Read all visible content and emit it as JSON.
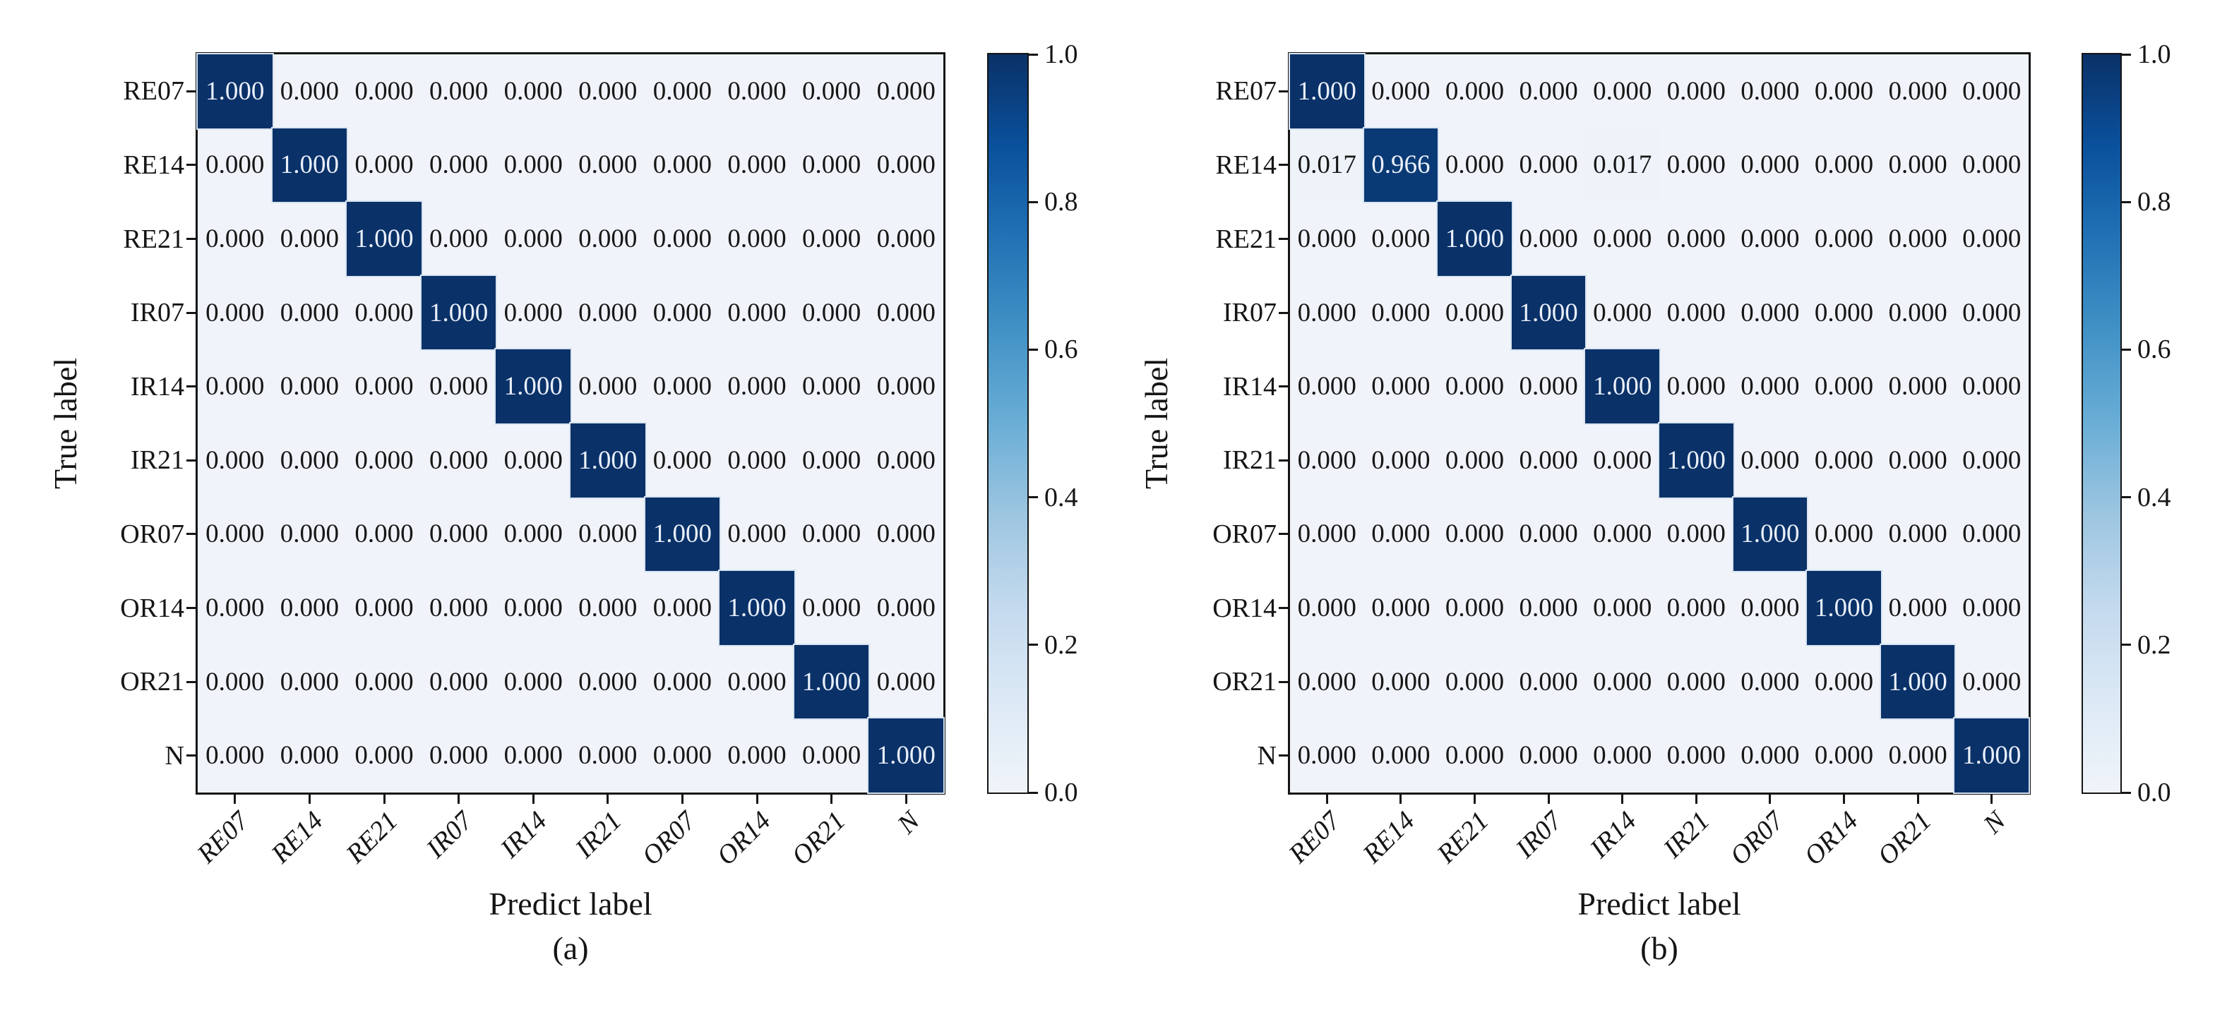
{
  "figure": {
    "background": "#ffffff",
    "text_color": "#151515",
    "ylabel": "True label",
    "xlabel": "Predict label",
    "classes": [
      "RE07",
      "RE14",
      "RE21",
      "IR07",
      "IR14",
      "IR21",
      "OR07",
      "OR14",
      "OR21",
      "N"
    ],
    "colormap_name": "Blues",
    "colormap_stops": [
      "#f0f4fa",
      "#dce9f5",
      "#c4daee",
      "#9dc6e0",
      "#6aaed6",
      "#4292c6",
      "#2272b5",
      "#0a519c",
      "#0a3168"
    ],
    "diagonal_color": "#0a3168",
    "off_diagonal_color": "#f0f4fa",
    "cell_text_dark_bg": "#e9eff9",
    "cell_text_light_bg": "#171717",
    "value_format_decimals": 3
  },
  "chart_data": [
    {
      "type": "heatmap",
      "caption": "(a)",
      "xlabel": "Predict label",
      "ylabel": "True label",
      "x_categories": [
        "RE07",
        "RE14",
        "RE21",
        "IR07",
        "IR14",
        "IR21",
        "OR07",
        "OR14",
        "OR21",
        "N"
      ],
      "y_categories": [
        "RE07",
        "RE14",
        "RE21",
        "IR07",
        "IR14",
        "IR21",
        "OR07",
        "OR14",
        "OR21",
        "N"
      ],
      "value_range": [
        0,
        1
      ],
      "colormap": "Blues",
      "colorbar_ticks": [
        "1.0",
        "0.8",
        "0.6",
        "0.4",
        "0.2",
        "0.0"
      ],
      "values": [
        [
          1.0,
          0.0,
          0.0,
          0.0,
          0.0,
          0.0,
          0.0,
          0.0,
          0.0,
          0.0
        ],
        [
          0.0,
          1.0,
          0.0,
          0.0,
          0.0,
          0.0,
          0.0,
          0.0,
          0.0,
          0.0
        ],
        [
          0.0,
          0.0,
          1.0,
          0.0,
          0.0,
          0.0,
          0.0,
          0.0,
          0.0,
          0.0
        ],
        [
          0.0,
          0.0,
          0.0,
          1.0,
          0.0,
          0.0,
          0.0,
          0.0,
          0.0,
          0.0
        ],
        [
          0.0,
          0.0,
          0.0,
          0.0,
          1.0,
          0.0,
          0.0,
          0.0,
          0.0,
          0.0
        ],
        [
          0.0,
          0.0,
          0.0,
          0.0,
          0.0,
          1.0,
          0.0,
          0.0,
          0.0,
          0.0
        ],
        [
          0.0,
          0.0,
          0.0,
          0.0,
          0.0,
          0.0,
          1.0,
          0.0,
          0.0,
          0.0
        ],
        [
          0.0,
          0.0,
          0.0,
          0.0,
          0.0,
          0.0,
          0.0,
          1.0,
          0.0,
          0.0
        ],
        [
          0.0,
          0.0,
          0.0,
          0.0,
          0.0,
          0.0,
          0.0,
          0.0,
          1.0,
          0.0
        ],
        [
          0.0,
          0.0,
          0.0,
          0.0,
          0.0,
          0.0,
          0.0,
          0.0,
          0.0,
          1.0
        ]
      ]
    },
    {
      "type": "heatmap",
      "caption": "(b)",
      "xlabel": "Predict label",
      "ylabel": "True label",
      "x_categories": [
        "RE07",
        "RE14",
        "RE21",
        "IR07",
        "IR14",
        "IR21",
        "OR07",
        "OR14",
        "OR21",
        "N"
      ],
      "y_categories": [
        "RE07",
        "RE14",
        "RE21",
        "IR07",
        "IR14",
        "IR21",
        "OR07",
        "OR14",
        "OR21",
        "N"
      ],
      "value_range": [
        0,
        1
      ],
      "colormap": "Blues",
      "colorbar_ticks": [
        "1.0",
        "0.8",
        "0.6",
        "0.4",
        "0.2",
        "0.0"
      ],
      "values": [
        [
          1.0,
          0.0,
          0.0,
          0.0,
          0.0,
          0.0,
          0.0,
          0.0,
          0.0,
          0.0
        ],
        [
          0.017,
          0.966,
          0.0,
          0.0,
          0.017,
          0.0,
          0.0,
          0.0,
          0.0,
          0.0
        ],
        [
          0.0,
          0.0,
          1.0,
          0.0,
          0.0,
          0.0,
          0.0,
          0.0,
          0.0,
          0.0
        ],
        [
          0.0,
          0.0,
          0.0,
          1.0,
          0.0,
          0.0,
          0.0,
          0.0,
          0.0,
          0.0
        ],
        [
          0.0,
          0.0,
          0.0,
          0.0,
          1.0,
          0.0,
          0.0,
          0.0,
          0.0,
          0.0
        ],
        [
          0.0,
          0.0,
          0.0,
          0.0,
          0.0,
          1.0,
          0.0,
          0.0,
          0.0,
          0.0
        ],
        [
          0.0,
          0.0,
          0.0,
          0.0,
          0.0,
          0.0,
          1.0,
          0.0,
          0.0,
          0.0
        ],
        [
          0.0,
          0.0,
          0.0,
          0.0,
          0.0,
          0.0,
          0.0,
          1.0,
          0.0,
          0.0
        ],
        [
          0.0,
          0.0,
          0.0,
          0.0,
          0.0,
          0.0,
          0.0,
          0.0,
          1.0,
          0.0
        ],
        [
          0.0,
          0.0,
          0.0,
          0.0,
          0.0,
          0.0,
          0.0,
          0.0,
          0.0,
          1.0
        ]
      ]
    }
  ]
}
